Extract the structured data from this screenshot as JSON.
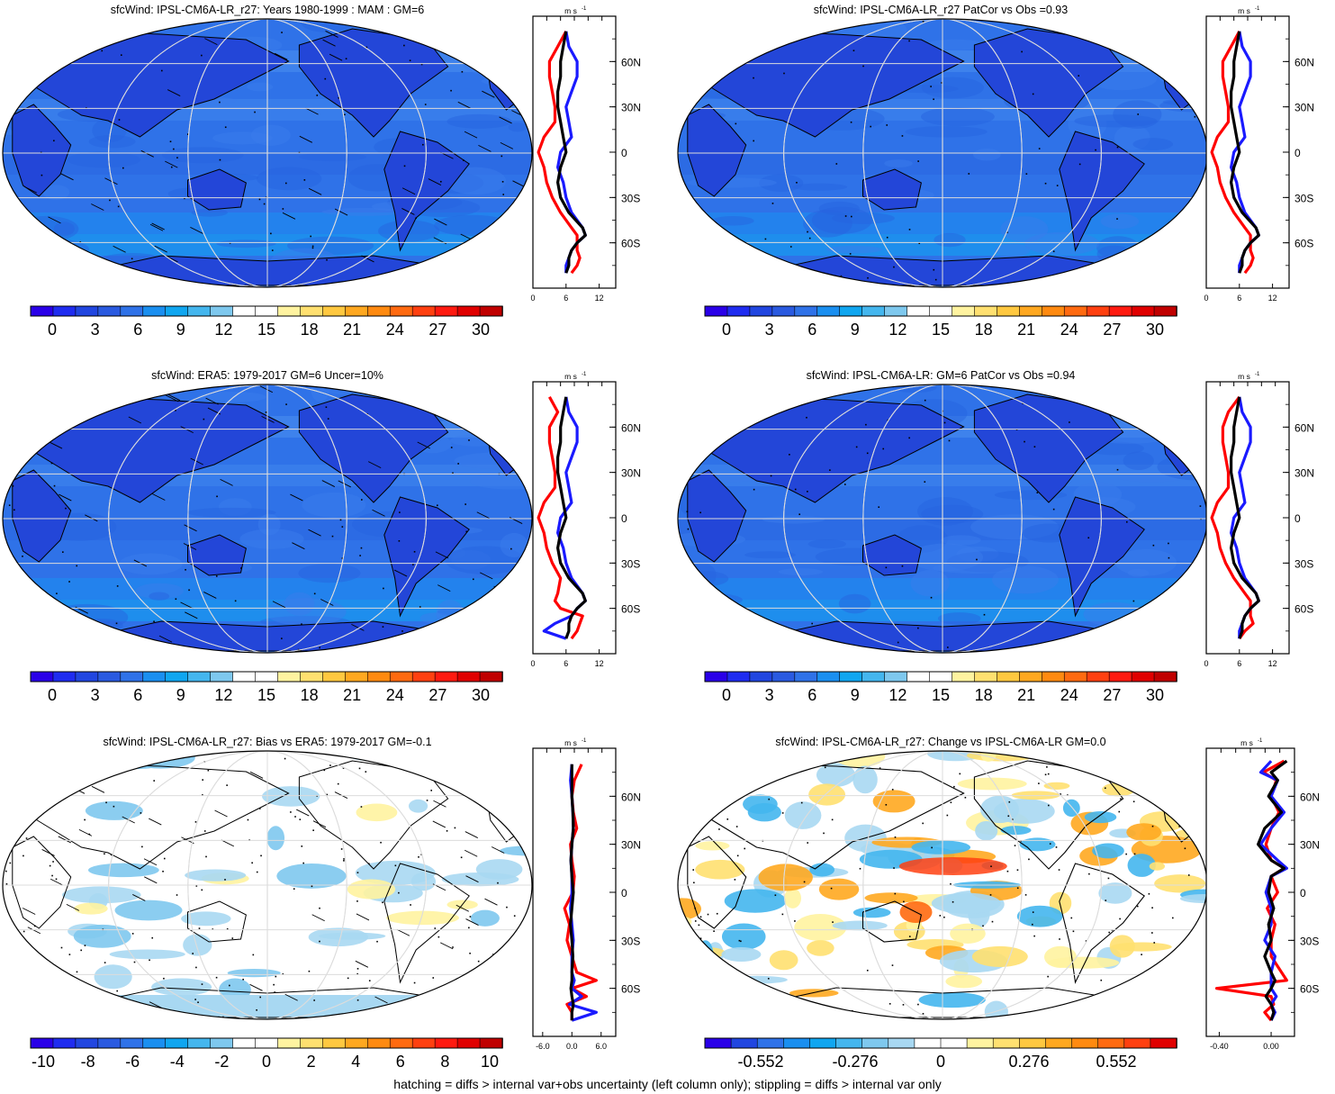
{
  "footer": "hatching = diffs > internal var+obs uncertainty (left column only); stippling = diffs > internal var only",
  "colors": {
    "model": "#000000",
    "djf": "#1a1aff",
    "jja": "#ff0000"
  },
  "zonal_mean_lat_ticks": [
    "60N",
    "30N",
    "0",
    "30S",
    "60S"
  ],
  "zonal_mean_unit": "m s",
  "zonal_mean_unit_sup": "-1",
  "colorbar_abs": [
    "0",
    "3",
    "6",
    "9",
    "12",
    "15",
    "18",
    "21",
    "24",
    "27",
    "30"
  ],
  "colorbar_bias": [
    "-10",
    "-8",
    "-6",
    "-4",
    "-2",
    "0",
    "2",
    "4",
    "6",
    "8",
    "10"
  ],
  "colorbar_change": [
    "-0.552",
    "-0.276",
    "0",
    "0.276",
    "0.552"
  ],
  "panels": [
    {
      "title": "sfcWind: IPSL-CM6A-LR_r27: Years 1980-1999 : MAM : GM=6",
      "zonal_x_ticks": [
        "0",
        "6",
        "12"
      ],
      "colorbar": "abs"
    },
    {
      "title": "sfcWind: IPSL-CM6A-LR_r27 PatCor vs Obs =0.93",
      "zonal_x_ticks": [
        "0",
        "6",
        "12"
      ],
      "colorbar": "abs"
    },
    {
      "title": "sfcWind: ERA5: 1979-2017 GM=6 Uncer=10%",
      "zonal_x_ticks": [
        "0",
        "6",
        "12"
      ],
      "colorbar": "abs"
    },
    {
      "title": "sfcWind: IPSL-CM6A-LR: GM=6 PatCor vs Obs =0.94",
      "zonal_x_ticks": [
        "0",
        "6",
        "12"
      ],
      "colorbar": "abs"
    },
    {
      "title": "sfcWind: IPSL-CM6A-LR_r27: Bias vs ERA5: 1979-2017 GM=-0.1",
      "zonal_x_ticks": [
        "-6.0",
        "0.0",
        "6.0"
      ],
      "colorbar": "bias"
    },
    {
      "title": "sfcWind: IPSL-CM6A-LR_r27: Change vs IPSL-CM6A-LR GM=0.0",
      "zonal_x_ticks": [
        "-0.40",
        "0.00"
      ],
      "colorbar": "change"
    }
  ],
  "chart_data": [
    {
      "type": "heatmap",
      "title": "sfcWind: IPSL-CM6A-LR_r27: Years 1980-1999 : MAM : GM=6",
      "colorbar_ticks": [
        0,
        3,
        6,
        9,
        12,
        15,
        18,
        21,
        24,
        27,
        30
      ],
      "zonal_mean": {
        "xlim": [
          0,
          15
        ],
        "series": [
          {
            "lat": [
              80,
              70,
              60,
              50,
              40,
              30,
              20,
              10,
              0,
              -10,
              -20,
              -30,
              -40,
              -50,
              -55,
              -60,
              -65,
              -70,
              -75,
              -80
            ],
            "values": [
              6,
              5.5,
              5,
              5,
              4.5,
              4.5,
              5,
              5.5,
              6,
              5,
              4.5,
              5,
              6.5,
              9,
              9.5,
              8,
              7,
              6.5,
              6.5,
              6
            ]
          },
          {
            "lat": [
              80,
              70,
              60,
              50,
              40,
              30,
              20,
              10,
              0,
              -10,
              -20,
              -30,
              -40,
              -50,
              -55,
              -60,
              -65,
              -70,
              -75,
              -80
            ],
            "values": [
              6,
              6.5,
              8,
              8,
              7,
              6,
              6.5,
              7,
              5,
              4.5,
              5.5,
              6,
              7,
              9,
              9.5,
              8,
              7,
              6.5,
              6,
              6
            ]
          },
          {
            "lat": [
              80,
              70,
              60,
              50,
              40,
              30,
              20,
              10,
              0,
              -10,
              -20,
              -30,
              -40,
              -50,
              -55,
              -60,
              -65,
              -70,
              -75,
              -80
            ],
            "values": [
              6,
              4.5,
              3,
              3,
              3.5,
              4,
              4,
              2,
              1,
              2,
              2.5,
              3.5,
              5,
              7,
              8,
              8,
              8,
              8.5,
              8,
              7
            ]
          }
        ]
      }
    },
    {
      "type": "heatmap",
      "title": "sfcWind: IPSL-CM6A-LR_r27 PatCor vs Obs =0.93",
      "colorbar_ticks": [
        0,
        3,
        6,
        9,
        12,
        15,
        18,
        21,
        24,
        27,
        30
      ],
      "zonal_mean": {
        "xlim": [
          0,
          15
        ],
        "series": [
          {
            "lat": [
              80,
              70,
              60,
              50,
              40,
              30,
              20,
              10,
              0,
              -10,
              -20,
              -30,
              -40,
              -50,
              -55,
              -60,
              -65,
              -70,
              -75,
              -80
            ],
            "values": [
              6,
              5.5,
              5,
              5,
              4.5,
              4.5,
              5,
              5.5,
              6,
              5,
              4.5,
              5,
              6.5,
              9,
              9.5,
              8,
              7,
              6.5,
              6.5,
              6
            ]
          },
          {
            "lat": [
              80,
              70,
              60,
              50,
              40,
              30,
              20,
              10,
              0,
              -10,
              -20,
              -30,
              -40,
              -50,
              -55,
              -60,
              -65,
              -70,
              -75,
              -80
            ],
            "values": [
              6,
              6.5,
              8,
              8,
              7,
              6,
              6.5,
              7,
              5,
              4.5,
              5.5,
              6,
              7,
              9,
              9.5,
              8,
              7,
              6.5,
              6,
              6
            ]
          },
          {
            "lat": [
              80,
              70,
              60,
              50,
              40,
              30,
              20,
              10,
              0,
              -10,
              -20,
              -30,
              -40,
              -50,
              -55,
              -60,
              -65,
              -70,
              -75,
              -80
            ],
            "values": [
              6,
              4.5,
              3,
              3,
              3.5,
              4,
              4,
              2,
              1,
              2,
              2.5,
              3.5,
              5,
              7,
              8,
              8,
              8,
              8.5,
              8,
              7
            ]
          }
        ]
      }
    },
    {
      "type": "heatmap",
      "title": "sfcWind: ERA5: 1979-2017 GM=6 Uncer=10%",
      "colorbar_ticks": [
        0,
        3,
        6,
        9,
        12,
        15,
        18,
        21,
        24,
        27,
        30
      ],
      "zonal_mean": {
        "xlim": [
          0,
          15
        ],
        "series": [
          {
            "lat": [
              80,
              70,
              60,
              50,
              40,
              30,
              20,
              10,
              0,
              -10,
              -20,
              -30,
              -40,
              -50,
              -55,
              -60,
              -65,
              -70,
              -75,
              -80
            ],
            "values": [
              6,
              5.5,
              5,
              5,
              4.5,
              4.5,
              5,
              5.5,
              6,
              5,
              4.5,
              5,
              6.5,
              9,
              9.5,
              8,
              7,
              6.5,
              6.5,
              6
            ]
          },
          {
            "lat": [
              80,
              70,
              60,
              50,
              40,
              30,
              20,
              10,
              0,
              -10,
              -20,
              -30,
              -40,
              -50,
              -55,
              -60,
              -65,
              -70,
              -75,
              -80
            ],
            "values": [
              6,
              6.5,
              8,
              8,
              7,
              6,
              6.5,
              7,
              5,
              4.5,
              5.5,
              6,
              7,
              9,
              9.5,
              8,
              7,
              4,
              2,
              6
            ]
          },
          {
            "lat": [
              80,
              70,
              60,
              50,
              40,
              30,
              20,
              10,
              0,
              -10,
              -20,
              -30,
              -40,
              -50,
              -55,
              -60,
              -65,
              -70,
              -75,
              -80
            ],
            "values": [
              3,
              4.5,
              3,
              3,
              3.5,
              4,
              4,
              2,
              1,
              2,
              2.5,
              3.5,
              5,
              4.5,
              4,
              5,
              9,
              8.5,
              8,
              7
            ]
          }
        ]
      }
    },
    {
      "type": "heatmap",
      "title": "sfcWind: IPSL-CM6A-LR: GM=6 PatCor vs Obs =0.94",
      "colorbar_ticks": [
        0,
        3,
        6,
        9,
        12,
        15,
        18,
        21,
        24,
        27,
        30
      ],
      "zonal_mean": {
        "xlim": [
          0,
          15
        ],
        "series": [
          {
            "lat": [
              80,
              70,
              60,
              50,
              40,
              30,
              20,
              10,
              0,
              -10,
              -20,
              -30,
              -40,
              -50,
              -55,
              -60,
              -65,
              -70,
              -75,
              -80
            ],
            "values": [
              6,
              5.5,
              5,
              5,
              4.5,
              4.5,
              5,
              5.5,
              6,
              5,
              4.5,
              5,
              6.5,
              9,
              9.5,
              8,
              7,
              6.5,
              6.5,
              6
            ]
          },
          {
            "lat": [
              80,
              70,
              60,
              50,
              40,
              30,
              20,
              10,
              0,
              -10,
              -20,
              -30,
              -40,
              -50,
              -55,
              -60,
              -65,
              -70,
              -75,
              -80
            ],
            "values": [
              6,
              6.5,
              8,
              8,
              7,
              6,
              6.5,
              7,
              5,
              4.5,
              5.5,
              6,
              7,
              9,
              9.5,
              8,
              7,
              6.5,
              6,
              6
            ]
          },
          {
            "lat": [
              80,
              70,
              60,
              50,
              40,
              30,
              20,
              10,
              0,
              -10,
              -20,
              -30,
              -40,
              -50,
              -55,
              -60,
              -65,
              -70,
              -75,
              -80
            ],
            "values": [
              6,
              4,
              3,
              3,
              3.5,
              4,
              4,
              2,
              1,
              2,
              2.5,
              3.5,
              5,
              7,
              8,
              8,
              8,
              8.5,
              7,
              6
            ]
          }
        ]
      }
    },
    {
      "type": "heatmap",
      "title": "sfcWind: IPSL-CM6A-LR_r27: Bias vs ERA5: 1979-2017 GM=-0.1",
      "colorbar_ticks": [
        -10,
        -8,
        -6,
        -4,
        -2,
        0,
        2,
        4,
        6,
        8,
        10
      ],
      "zonal_mean": {
        "xlim": [
          -8,
          9
        ],
        "series": [
          {
            "lat": [
              80,
              70,
              60,
              50,
              40,
              30,
              20,
              10,
              0,
              -10,
              -20,
              -30,
              -40,
              -50,
              -55,
              -60,
              -65,
              -70,
              -75,
              -80
            ],
            "values": [
              0,
              0,
              0,
              0.2,
              0.3,
              0,
              -0.2,
              0,
              0.3,
              0,
              -0.3,
              0,
              0.2,
              0,
              0,
              -0.2,
              0,
              0.3,
              0,
              0
            ]
          },
          {
            "lat": [
              80,
              70,
              60,
              50,
              40,
              30,
              20,
              10,
              0,
              -10,
              -20,
              -30,
              -40,
              -50,
              -55,
              -60,
              -65,
              -70,
              -75,
              -80
            ],
            "values": [
              0,
              -0.3,
              0,
              0.2,
              0.3,
              0,
              -0.2,
              0,
              0,
              -0.3,
              0,
              0.3,
              0,
              0,
              0.5,
              0,
              2,
              -0.5,
              5,
              0
            ]
          },
          {
            "lat": [
              80,
              70,
              60,
              50,
              40,
              30,
              20,
              10,
              0,
              -10,
              -20,
              -30,
              -40,
              -50,
              -55,
              -60,
              -65,
              -70,
              -75,
              -80
            ],
            "values": [
              2,
              0.5,
              0,
              0.3,
              1,
              -0.3,
              0,
              0.5,
              0.2,
              -1.5,
              -0.5,
              -1,
              0,
              1,
              5,
              0,
              3,
              -1,
              0,
              0
            ]
          }
        ]
      }
    },
    {
      "type": "heatmap",
      "title": "sfcWind: IPSL-CM6A-LR_r27: Change vs IPSL-CM6A-LR GM=0.0",
      "colorbar_ticks": [
        -0.552,
        -0.276,
        0,
        0.276,
        0.552
      ],
      "zonal_mean": {
        "xlim": [
          -0.5,
          0.18
        ],
        "series": [
          {
            "lat": [
              82,
              75,
              70,
              60,
              50,
              40,
              30,
              20,
              15,
              10,
              0,
              -10,
              -20,
              -30,
              -40,
              -50,
              -55,
              -60,
              -65,
              -70,
              -75,
              -80
            ],
            "values": [
              0.12,
              0,
              0.05,
              -0.02,
              0.08,
              -0.05,
              -0.1,
              0,
              0.1,
              0,
              -0.02,
              0.02,
              -0.02,
              0,
              -0.05,
              0,
              0.03,
              0,
              -0.04,
              0,
              0.02,
              0
            ]
          },
          {
            "lat": [
              82,
              75,
              70,
              60,
              50,
              40,
              30,
              20,
              15,
              10,
              0,
              -10,
              -20,
              -30,
              -40,
              -50,
              -55,
              -60,
              -65,
              -70,
              -75,
              -80
            ],
            "values": [
              0,
              -0.08,
              0.05,
              0,
              0.1,
              0,
              -0.08,
              0.05,
              0.12,
              0,
              -0.04,
              0,
              0,
              -0.05,
              0.03,
              0,
              0,
              0,
              0.04,
              0,
              0.03,
              0
            ]
          },
          {
            "lat": [
              82,
              75,
              70,
              60,
              50,
              40,
              30,
              20,
              15,
              10,
              0,
              -10,
              -20,
              -30,
              -40,
              -50,
              -55,
              -60,
              -65,
              -70,
              -75,
              -80
            ],
            "values": [
              0.1,
              -0.06,
              0.04,
              0,
              0.06,
              0,
              -0.04,
              0,
              0.1,
              0,
              0.05,
              -0.03,
              0.03,
              0,
              0,
              0.08,
              0.12,
              -0.42,
              0,
              0.02,
              -0.05,
              0
            ]
          }
        ]
      }
    }
  ]
}
